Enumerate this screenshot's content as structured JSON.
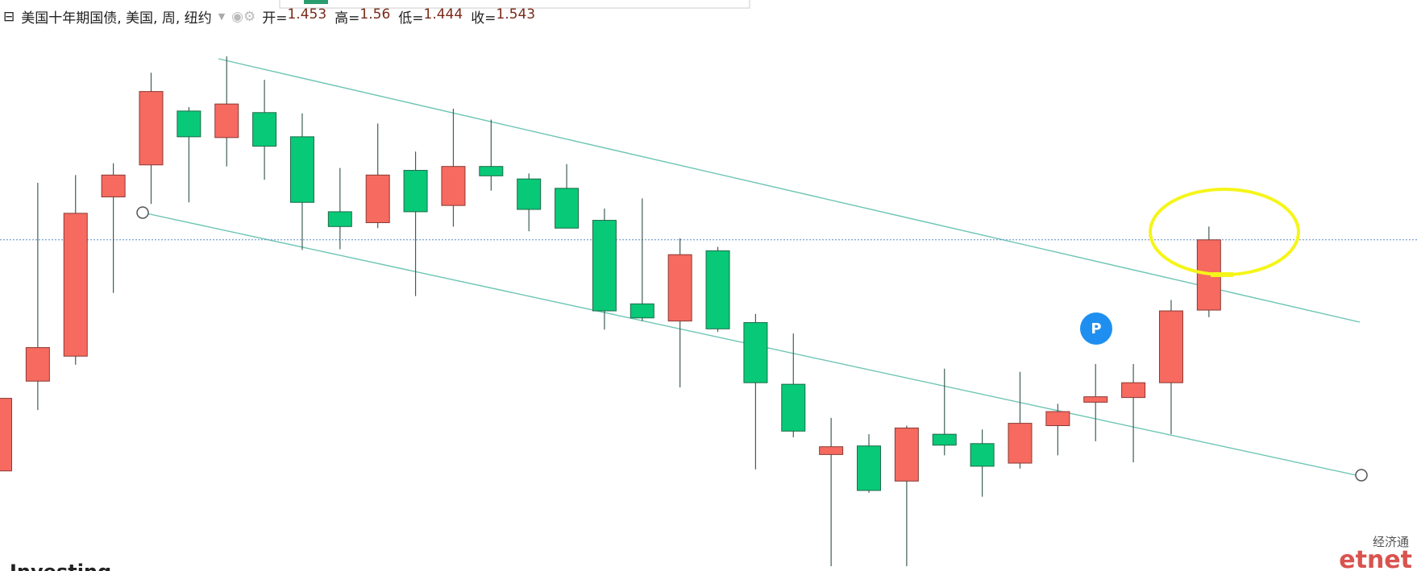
{
  "chart_data": {
    "type": "candlestick",
    "title": "美国十年期国债, 美国, 周, 纽约",
    "ohlc_labels": [
      "开=",
      "高=",
      "低=",
      "收="
    ],
    "up_color": "#f66a60",
    "down_color": "#08c977",
    "open": [
      1.247,
      1.362,
      1.394,
      1.598,
      1.639,
      1.708,
      1.674,
      1.706,
      1.675,
      1.579,
      1.565,
      1.632,
      1.587,
      1.637,
      1.621,
      1.609,
      1.568,
      1.461,
      1.439,
      1.529,
      1.437,
      1.358,
      1.268,
      1.279,
      1.234,
      1.294,
      1.282,
      1.257,
      1.305,
      1.335,
      1.341,
      1.36,
      1.453
    ],
    "high": [
      1.34,
      1.616,
      1.626,
      1.641,
      1.757,
      1.713,
      1.778,
      1.748,
      1.705,
      1.635,
      1.692,
      1.656,
      1.711,
      1.697,
      1.628,
      1.64,
      1.583,
      1.596,
      1.545,
      1.534,
      1.448,
      1.423,
      1.315,
      1.294,
      1.305,
      1.378,
      1.3,
      1.374,
      1.333,
      1.384,
      1.384,
      1.466,
      1.56
    ],
    "low": [
      1.247,
      1.325,
      1.383,
      1.475,
      1.589,
      1.591,
      1.637,
      1.62,
      1.53,
      1.531,
      1.558,
      1.471,
      1.56,
      1.606,
      1.554,
      1.558,
      1.428,
      1.439,
      1.354,
      1.425,
      1.249,
      1.29,
      1.125,
      1.219,
      1.125,
      1.267,
      1.214,
      1.25,
      1.267,
      1.285,
      1.258,
      1.294,
      1.444
    ],
    "close": [
      1.34,
      1.405,
      1.577,
      1.626,
      1.733,
      1.675,
      1.717,
      1.663,
      1.591,
      1.56,
      1.626,
      1.579,
      1.637,
      1.625,
      1.582,
      1.558,
      1.452,
      1.443,
      1.524,
      1.429,
      1.36,
      1.298,
      1.278,
      1.222,
      1.302,
      1.28,
      1.253,
      1.308,
      1.323,
      1.342,
      1.36,
      1.452,
      1.543
    ]
  },
  "watermark": {
    "left": "Investing",
    "right_top": "经济通",
    "right_bottom": "etnet"
  }
}
